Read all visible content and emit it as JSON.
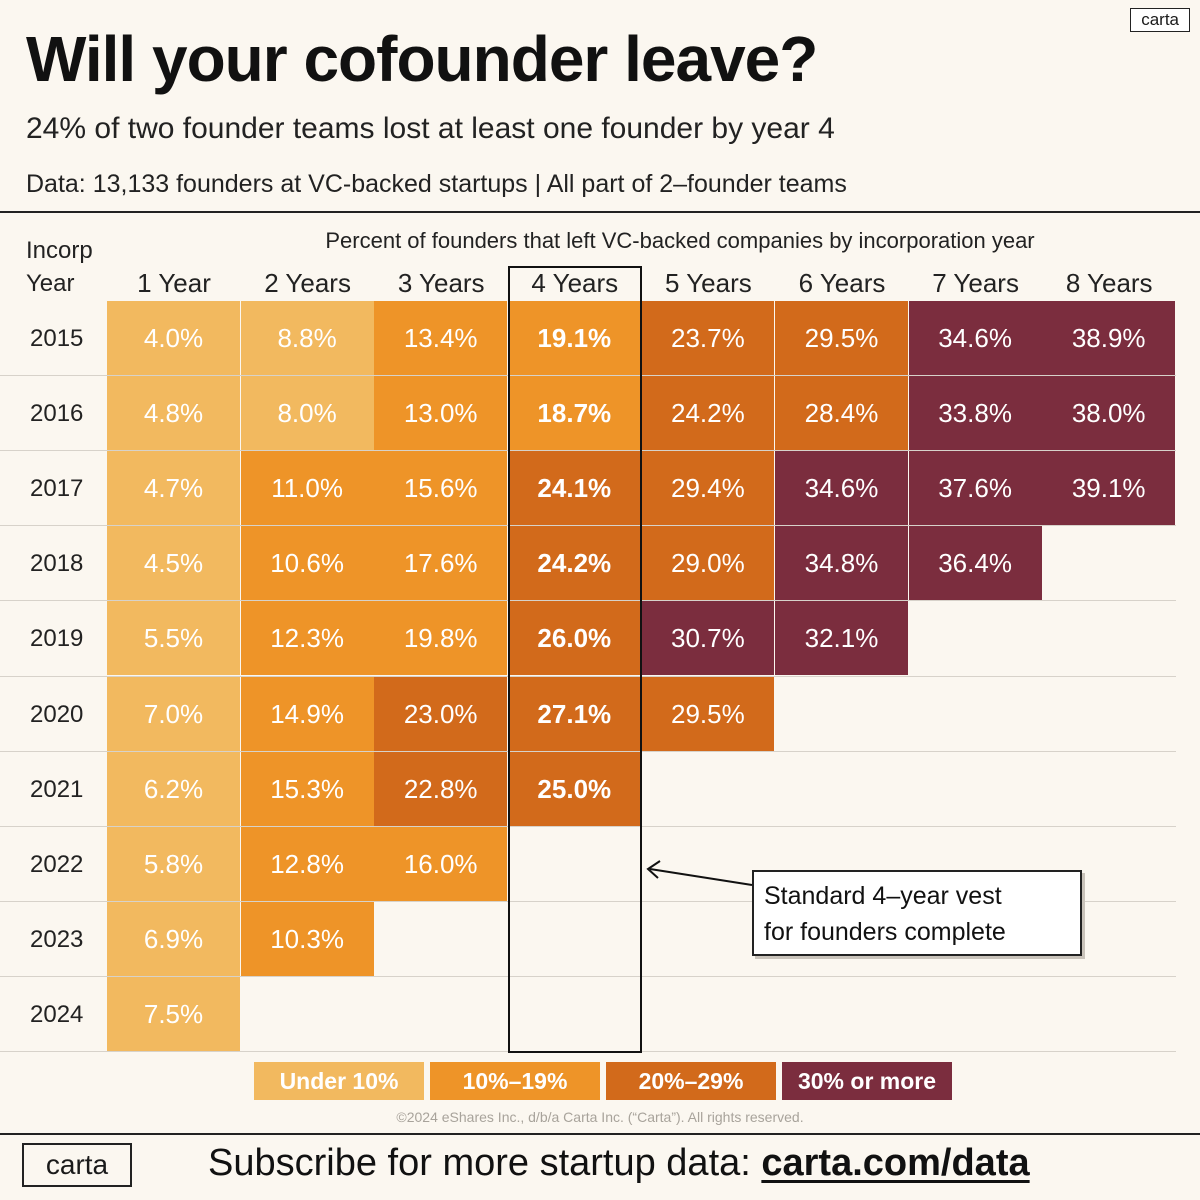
{
  "header": {
    "title": "Will your cofounder leave?",
    "subtitle": "24% of two founder teams lost at least one founder by year 4",
    "source": "Data: 13,133 founders at VC-backed startups | All part of 2–founder teams",
    "logo_text": "carta"
  },
  "chart_data": {
    "type": "table",
    "title": "Percent of founders that left VC-backed companies by incorporation year",
    "row_header": [
      "Incorp",
      "Year"
    ],
    "columns": [
      "1 Year",
      "2 Years",
      "3 Years",
      "4 Years",
      "5 Years",
      "6 Years",
      "7 Years",
      "8 Years"
    ],
    "rows": [
      {
        "year": "2015",
        "values": [
          "4.0%",
          "8.8%",
          "13.4%",
          "19.1%",
          "23.7%",
          "29.5%",
          "34.6%",
          "38.9%"
        ]
      },
      {
        "year": "2016",
        "values": [
          "4.8%",
          "8.0%",
          "13.0%",
          "18.7%",
          "24.2%",
          "28.4%",
          "33.8%",
          "38.0%"
        ]
      },
      {
        "year": "2017",
        "values": [
          "4.7%",
          "11.0%",
          "15.6%",
          "24.1%",
          "29.4%",
          "34.6%",
          "37.6%",
          "39.1%"
        ]
      },
      {
        "year": "2018",
        "values": [
          "4.5%",
          "10.6%",
          "17.6%",
          "24.2%",
          "29.0%",
          "34.8%",
          "36.4%"
        ]
      },
      {
        "year": "2019",
        "values": [
          "5.5%",
          "12.3%",
          "19.8%",
          "26.0%",
          "30.7%",
          "32.1%"
        ]
      },
      {
        "year": "2020",
        "values": [
          "7.0%",
          "14.9%",
          "23.0%",
          "27.1%",
          "29.5%"
        ]
      },
      {
        "year": "2021",
        "values": [
          "6.2%",
          "15.3%",
          "22.8%",
          "25.0%"
        ]
      },
      {
        "year": "2022",
        "values": [
          "5.8%",
          "12.8%",
          "16.0%"
        ]
      },
      {
        "year": "2023",
        "values": [
          "6.9%",
          "10.3%"
        ]
      },
      {
        "year": "2024",
        "values": [
          "7.5%"
        ]
      }
    ],
    "highlight_column": "4 Years",
    "callout": [
      "Standard 4–year vest",
      "for founders complete"
    ],
    "legend": [
      {
        "label": "Under 10%",
        "color": "#f2b95f",
        "min": 0,
        "max": 10
      },
      {
        "label": "10%–19%",
        "color": "#ee9428",
        "min": 10,
        "max": 20
      },
      {
        "label": "20%–29%",
        "color": "#d26a1b",
        "min": 20,
        "max": 30
      },
      {
        "label": "30% or more",
        "color": "#7b2d3e",
        "min": 30,
        "max": 1000
      }
    ]
  },
  "footer": {
    "copyright": "©2024 eShares Inc., d/b/a Carta Inc. (“Carta”). All rights reserved.",
    "logo_text": "carta",
    "cta_text": "Subscribe for more startup data: ",
    "cta_link": "carta.com/data"
  }
}
